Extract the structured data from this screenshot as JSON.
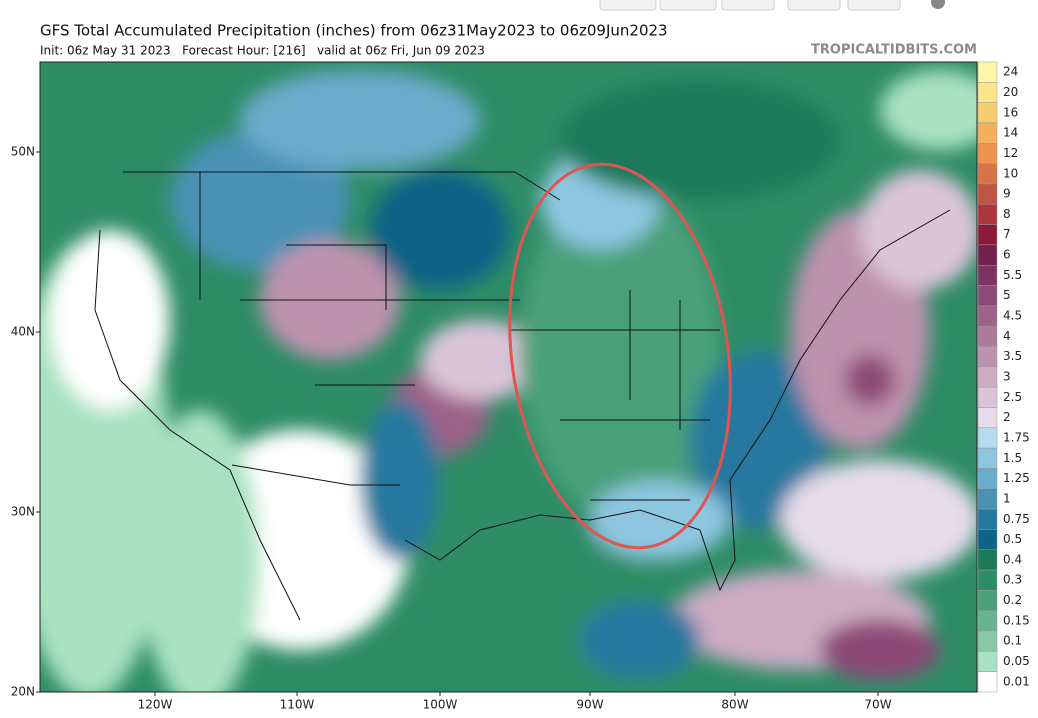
{
  "header": {
    "title": "GFS Total Accumulated Precipitation (inches) from 06z31May2023 to 06z09Jun2023",
    "subtitle": "Init: 06z May 31 2023   Forecast Hour: [216]   valid at 06z Fri, Jun 09 2023",
    "watermark": "TROPICALTIDBITS.COM"
  },
  "map": {
    "lat_labels": [
      "50N",
      "40N",
      "30N",
      "20N"
    ],
    "lon_labels": [
      "120W",
      "110W",
      "100W",
      "90W",
      "80W",
      "70W"
    ]
  },
  "colorbar": {
    "items": [
      {
        "label": "24",
        "color": "#fef6a8"
      },
      {
        "label": "20",
        "color": "#fde58a"
      },
      {
        "label": "16",
        "color": "#f9cd6e"
      },
      {
        "label": "14",
        "color": "#f5b05e"
      },
      {
        "label": "12",
        "color": "#ec9450"
      },
      {
        "label": "10",
        "color": "#d8744a"
      },
      {
        "label": "9",
        "color": "#c05442"
      },
      {
        "label": "8",
        "color": "#a8363c"
      },
      {
        "label": "7",
        "color": "#8c1a3a"
      },
      {
        "label": "6",
        "color": "#72204e"
      },
      {
        "label": "5.5",
        "color": "#7e3462"
      },
      {
        "label": "5",
        "color": "#8c4a76"
      },
      {
        "label": "4.5",
        "color": "#9c6288"
      },
      {
        "label": "4",
        "color": "#ad7a9a"
      },
      {
        "label": "3.5",
        "color": "#bd92ae"
      },
      {
        "label": "3",
        "color": "#ccabc3"
      },
      {
        "label": "2.5",
        "color": "#dbc4d8"
      },
      {
        "label": "2",
        "color": "#e6dcea"
      },
      {
        "label": "1.75",
        "color": "#b5dbee"
      },
      {
        "label": "1.5",
        "color": "#8ec6e0"
      },
      {
        "label": "1.25",
        "color": "#6aaccc"
      },
      {
        "label": "1",
        "color": "#4892b6"
      },
      {
        "label": "0.75",
        "color": "#26789f"
      },
      {
        "label": "0.5",
        "color": "#0e6486"
      },
      {
        "label": "0.4",
        "color": "#1c7a5a"
      },
      {
        "label": "0.3",
        "color": "#2e8c66"
      },
      {
        "label": "0.2",
        "color": "#49a07a"
      },
      {
        "label": "0.15",
        "color": "#68b48e"
      },
      {
        "label": "0.1",
        "color": "#88c8a4"
      },
      {
        "label": "0.05",
        "color": "#a8e2c0"
      },
      {
        "label": "0.01",
        "color": "#ffffff"
      }
    ]
  }
}
